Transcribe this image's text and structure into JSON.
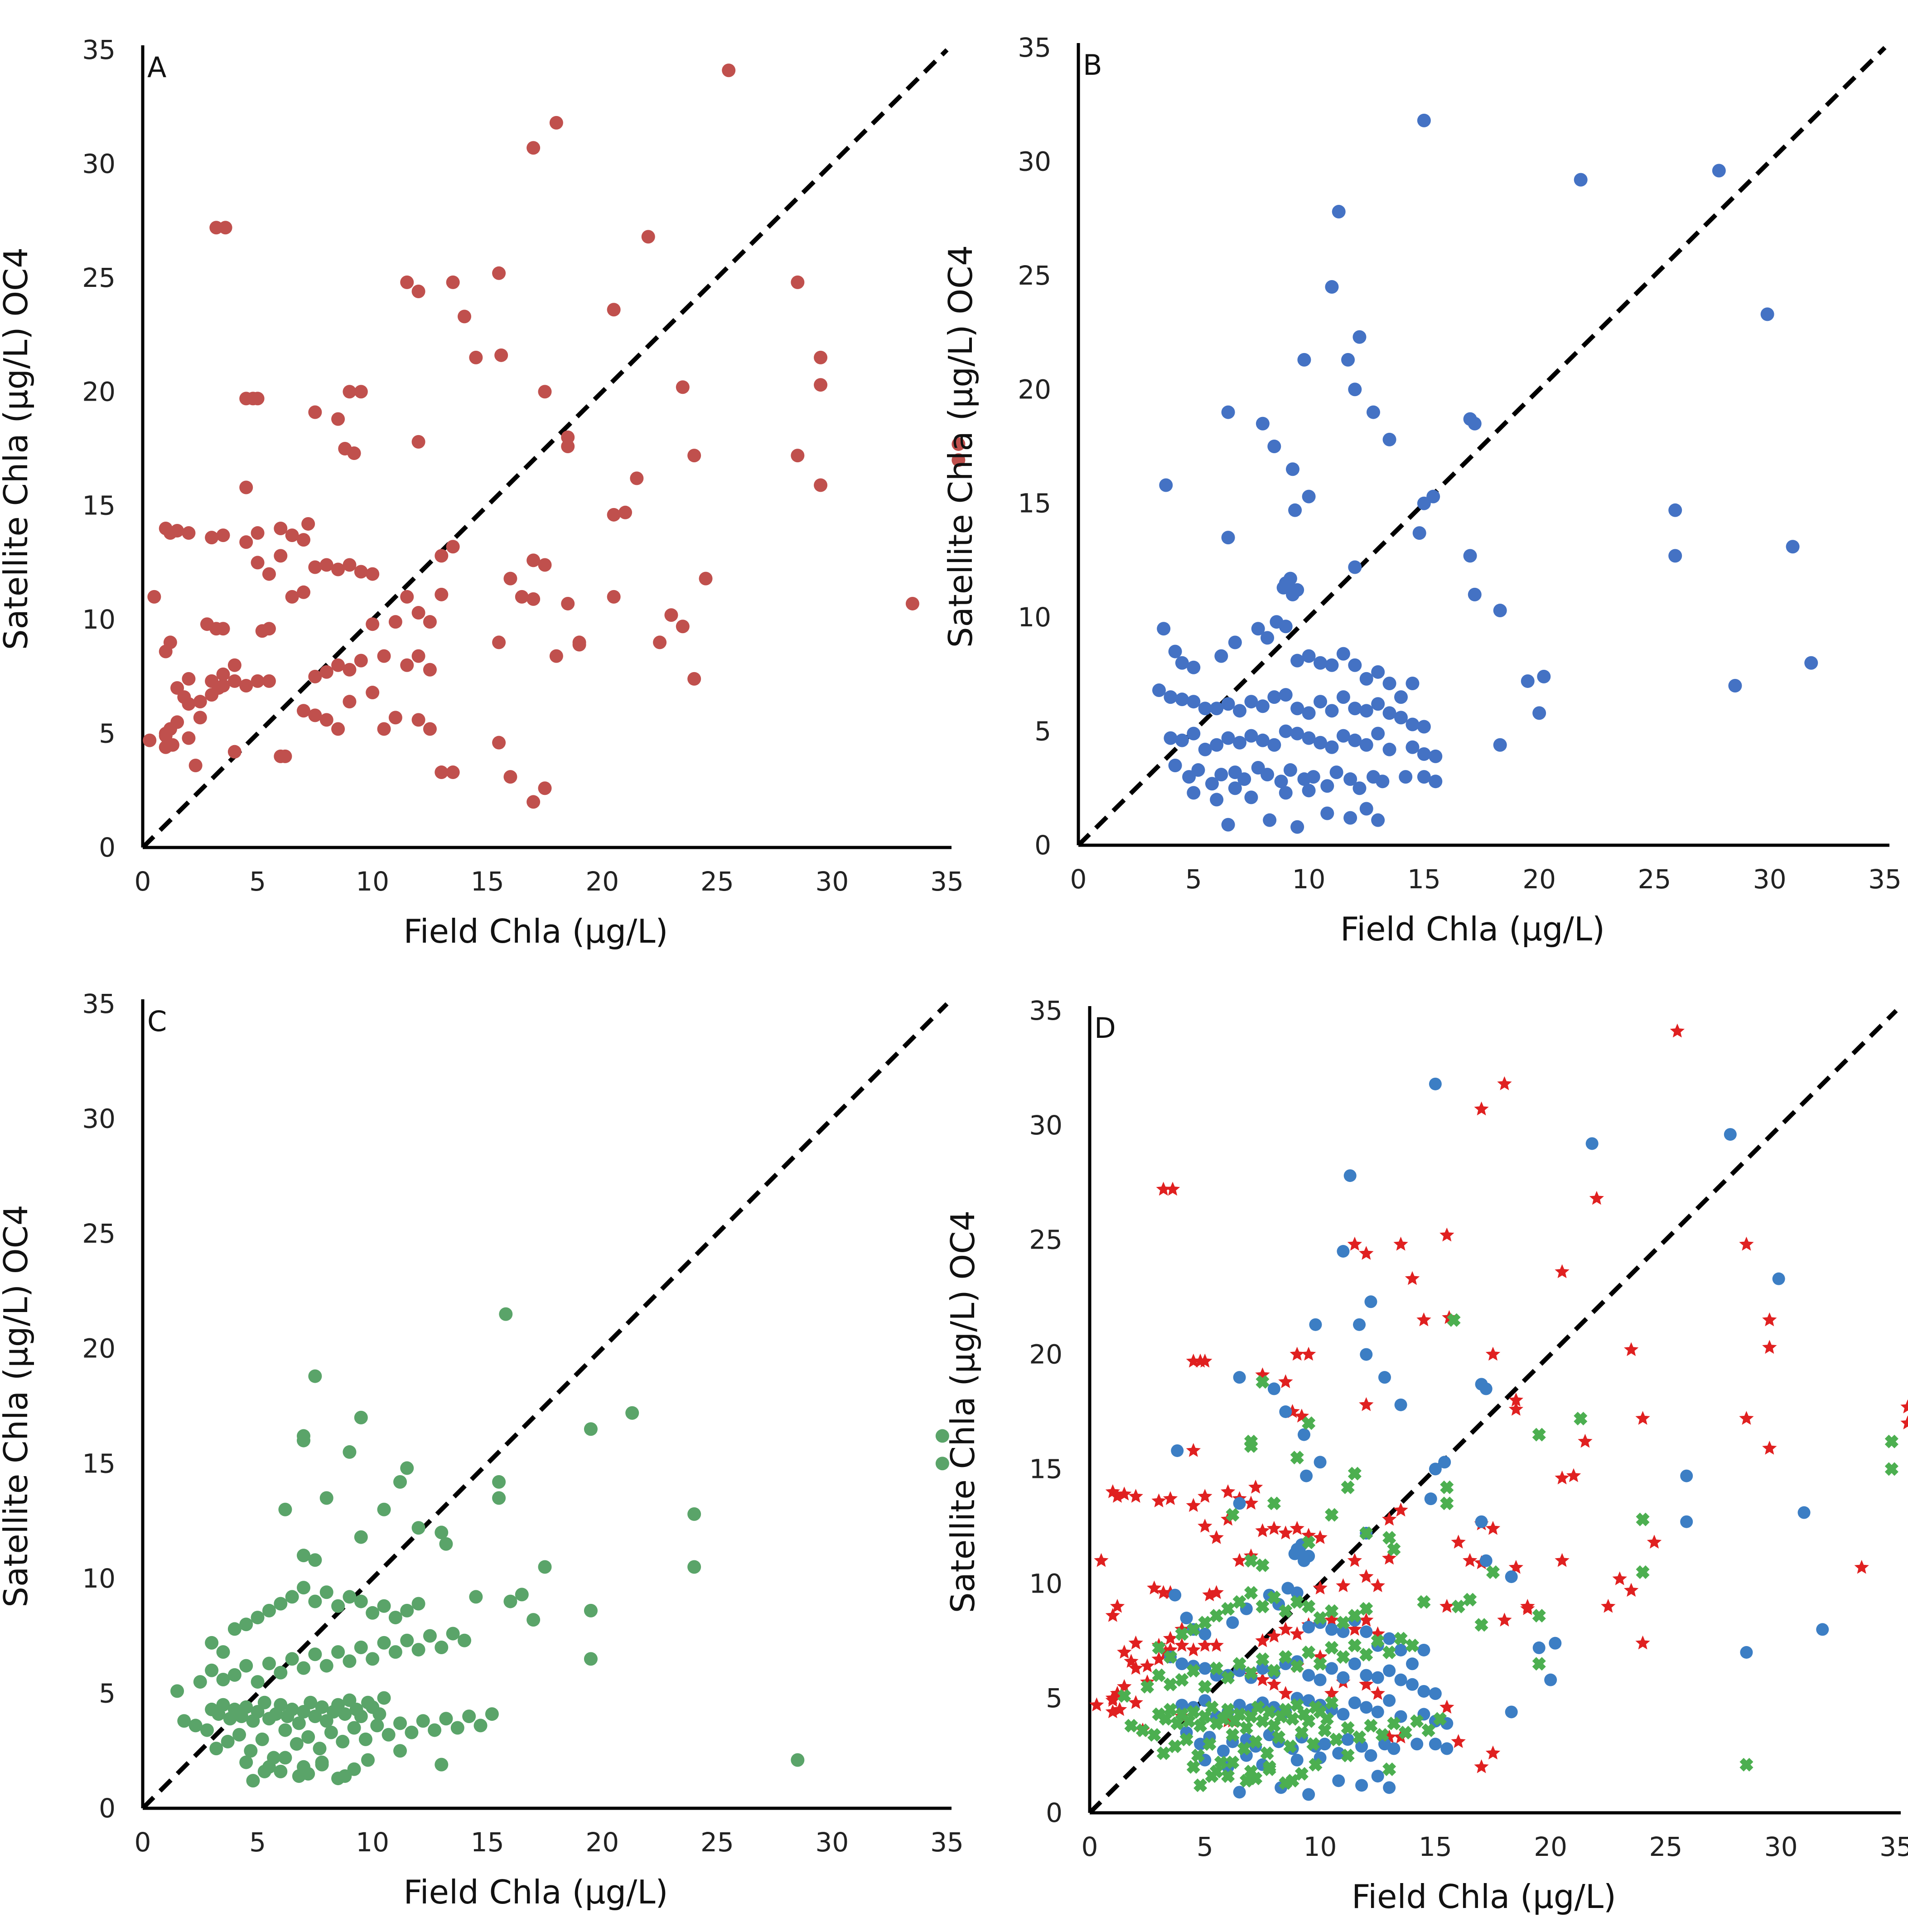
{
  "chart_data": [
    {
      "type": "scatter",
      "panel_label": "A",
      "xlabel": "Field Chla (µg/L)",
      "ylabel": "Satellite Chla (µg/L) OC4",
      "xlim": [
        0,
        35
      ],
      "ylim": [
        0,
        35
      ],
      "xticks": [
        "0",
        "5",
        "10",
        "15",
        "20",
        "25",
        "30",
        "35"
      ],
      "yticks": [
        "0",
        "5",
        "10",
        "15",
        "20",
        "25",
        "30",
        "35"
      ],
      "reference_line": "1:1 dashed",
      "series": [
        {
          "color": "#c0504d",
          "marker": "circle",
          "x": [
            0.3,
            0.5,
            1.0,
            1.0,
            1.2,
            1.3,
            1.5,
            2.0,
            2.3,
            2.5,
            1.0,
            1.2,
            1.5,
            1.8,
            2.0,
            2.5,
            3.0,
            3.3,
            3.5,
            4.0,
            2.8,
            3.2,
            3.5,
            4.0,
            1.0,
            1.2,
            1.5,
            2.0,
            3.0,
            3.5,
            4.5,
            5.0,
            5.2,
            5.5,
            6.0,
            6.5,
            7.0,
            7.2,
            7.5,
            8.0,
            8.5,
            9.0,
            9.5,
            10.0,
            10.5,
            11.0,
            11.5,
            12.0,
            12.5,
            13.0,
            4.5,
            5.0,
            5.5,
            6.0,
            6.5,
            7.0,
            7.5,
            8.0,
            8.5,
            9.0,
            9.5,
            10.0,
            11.5,
            12.0,
            12.5,
            13.0,
            13.5,
            1.0,
            1.2,
            2.0,
            3.0,
            3.5,
            4.0,
            4.5,
            5.0,
            5.5,
            6.0,
            6.2,
            7.0,
            7.5,
            8.0,
            8.5,
            9.0,
            10.0,
            10.5,
            11.0,
            12.0,
            12.5,
            13.0,
            13.5,
            15.5,
            16.0,
            17.0,
            17.5,
            18.0,
            19.0,
            3.2,
            3.6,
            4.5,
            4.8,
            5.0,
            7.5,
            8.5,
            9.0,
            9.5,
            8.8,
            9.2,
            11.5,
            12.0,
            12.0,
            13.5,
            14.0,
            14.5,
            15.5,
            15.6,
            17.0,
            17.5,
            18.0,
            18.5,
            17.0,
            18.5,
            20.5,
            22.0,
            25.5,
            20.5,
            21.0,
            21.5,
            23.5,
            24.0,
            24.5,
            23.0,
            22.5,
            28.5,
            29.5,
            28.5,
            29.5,
            29.5,
            33.5,
            35.5,
            35.5,
            16.0,
            16.5,
            15.5,
            17.5,
            19.0,
            20.5,
            23.5,
            24.0,
            17.0,
            18.5
          ],
          "y": [
            4.7,
            11.0,
            4.9,
            5.0,
            5.2,
            4.5,
            5.5,
            4.8,
            3.6,
            5.7,
            8.6,
            9.0,
            7.0,
            6.6,
            7.4,
            6.4,
            7.3,
            7.0,
            7.6,
            8.0,
            9.8,
            9.6,
            9.6,
            4.2,
            14.0,
            13.8,
            13.9,
            13.8,
            13.6,
            13.7,
            13.4,
            13.8,
            9.5,
            9.6,
            14.0,
            13.7,
            13.5,
            14.2,
            7.5,
            7.7,
            8.0,
            7.8,
            8.2,
            9.8,
            8.4,
            9.9,
            8.0,
            8.4,
            7.8,
            12.8,
            15.8,
            12.5,
            12.0,
            12.8,
            11.0,
            11.2,
            12.3,
            12.4,
            12.2,
            12.4,
            12.1,
            12.0,
            11.0,
            10.3,
            9.9,
            11.1,
            13.2,
            4.4,
            5.2,
            6.3,
            6.7,
            7.1,
            7.3,
            7.1,
            7.3,
            7.3,
            4.0,
            4.0,
            6.0,
            5.8,
            5.6,
            5.2,
            6.4,
            6.8,
            5.2,
            5.7,
            5.6,
            5.2,
            3.3,
            3.3,
            4.6,
            3.1,
            2.0,
            2.6,
            8.4,
            8.9,
            27.2,
            27.2,
            19.7,
            19.7,
            19.7,
            19.1,
            18.8,
            20.0,
            20.0,
            17.5,
            17.3,
            24.8,
            17.8,
            24.4,
            24.8,
            23.3,
            21.5,
            25.2,
            21.6,
            30.7,
            20.0,
            31.8,
            17.6,
            12.6,
            18.0,
            23.6,
            26.8,
            34.1,
            14.6,
            14.7,
            16.2,
            20.2,
            17.2,
            11.8,
            10.2,
            9.0,
            24.8,
            21.5,
            17.2,
            20.3,
            15.9,
            10.7,
            17.7,
            17.0,
            11.8,
            11.0,
            9.0,
            12.4,
            9.0,
            11.0,
            9.7,
            7.4,
            10.9,
            10.7
          ]
        }
      ]
    },
    {
      "type": "scatter",
      "panel_label": "B",
      "xlabel": "Field Chla (µg/L)",
      "ylabel": "Satellite Chla (µg/L) OC4",
      "xlim": [
        0,
        35
      ],
      "ylim": [
        0,
        35
      ],
      "xticks": [
        "0",
        "5",
        "10",
        "15",
        "20",
        "25",
        "30",
        "35"
      ],
      "yticks": [
        "0",
        "5",
        "10",
        "15",
        "20",
        "25",
        "30",
        "35"
      ],
      "reference_line": "1:1 dashed",
      "series": [
        {
          "color": "#4472c4",
          "marker": "circle",
          "x": [
            15.0,
            27.8,
            21.8,
            11.3,
            11.0,
            12.2,
            9.8,
            11.7,
            12.0,
            12.8,
            13.5,
            6.5,
            8.5,
            8.0,
            9.3,
            10.0,
            3.8,
            9.4,
            6.5,
            12.0,
            17.0,
            17.2,
            29.9,
            31.0,
            25.9,
            25.9,
            15.4,
            15.0,
            14.8,
            17.2,
            17.0,
            18.3,
            18.3,
            19.5,
            20.2,
            20.0,
            28.5,
            31.8,
            9.0,
            9.2,
            8.9,
            9.5,
            9.3,
            9.1,
            3.7,
            4.2,
            4.5,
            5.0,
            6.2,
            6.8,
            7.8,
            8.2,
            8.6,
            9.0,
            9.5,
            10.0,
            10.5,
            11.0,
            11.5,
            12.0,
            12.5,
            13.0,
            13.5,
            14.0,
            14.5,
            3.5,
            4.0,
            4.5,
            5.0,
            5.5,
            6.0,
            6.5,
            7.0,
            7.5,
            8.0,
            8.5,
            9.0,
            9.5,
            10.0,
            10.5,
            11.0,
            11.5,
            12.0,
            12.5,
            13.0,
            13.5,
            14.0,
            14.5,
            15.0,
            4.0,
            4.5,
            5.0,
            5.5,
            6.0,
            6.5,
            7.0,
            7.5,
            8.0,
            8.5,
            9.0,
            9.5,
            10.0,
            10.5,
            11.0,
            11.5,
            12.0,
            12.5,
            13.0,
            13.5,
            14.5,
            15.0,
            15.5,
            4.2,
            4.8,
            5.2,
            5.8,
            6.2,
            6.8,
            7.2,
            7.8,
            8.2,
            8.8,
            9.2,
            9.8,
            10.2,
            10.8,
            11.2,
            11.8,
            12.2,
            12.8,
            13.2,
            14.2,
            6.5,
            8.3,
            9.5,
            10.8,
            11.8,
            12.5,
            13.0,
            15.0,
            15.5,
            5.0,
            6.0,
            6.8,
            7.5,
            9.0,
            10.0
          ],
          "y": [
            31.8,
            29.6,
            29.2,
            27.8,
            24.5,
            22.3,
            21.3,
            21.3,
            20.0,
            19.0,
            17.8,
            19.0,
            17.5,
            18.5,
            16.5,
            15.3,
            15.8,
            14.7,
            13.5,
            12.2,
            18.7,
            18.5,
            23.3,
            13.1,
            14.7,
            12.7,
            15.3,
            15.0,
            13.7,
            11.0,
            12.7,
            10.3,
            4.4,
            7.2,
            7.4,
            5.8,
            7.0,
            8.0,
            11.5,
            11.7,
            11.3,
            11.2,
            11.0,
            11.4,
            9.5,
            8.5,
            8.0,
            7.8,
            8.3,
            8.9,
            9.5,
            9.1,
            9.8,
            9.6,
            8.1,
            8.3,
            8.0,
            7.9,
            8.4,
            7.9,
            7.3,
            7.6,
            7.1,
            6.5,
            7.1,
            6.8,
            6.5,
            6.4,
            6.3,
            6.0,
            6.0,
            6.2,
            5.9,
            6.3,
            6.1,
            6.5,
            6.6,
            6.0,
            5.8,
            6.3,
            5.9,
            6.5,
            6.0,
            5.9,
            6.2,
            5.8,
            5.6,
            5.3,
            5.2,
            4.7,
            4.6,
            4.9,
            4.2,
            4.4,
            4.7,
            4.5,
            4.8,
            4.6,
            4.4,
            5.0,
            4.9,
            4.7,
            4.5,
            4.3,
            4.8,
            4.6,
            4.4,
            4.9,
            4.2,
            4.3,
            4.0,
            3.9,
            3.5,
            3.0,
            3.3,
            2.7,
            3.1,
            3.2,
            2.9,
            3.4,
            3.1,
            2.8,
            3.3,
            2.9,
            3.0,
            2.6,
            3.2,
            2.9,
            2.5,
            3.0,
            2.8,
            3.0,
            0.9,
            1.1,
            0.8,
            1.4,
            1.2,
            1.6,
            1.1,
            3.0,
            2.8,
            2.3,
            2.0,
            2.5,
            2.1,
            2.3,
            2.4
          ]
        }
      ]
    },
    {
      "type": "scatter",
      "panel_label": "C",
      "xlabel": "Field Chla (µg/L)",
      "ylabel": "Satellite Chla (µg/L) OC4",
      "xlim": [
        0,
        35
      ],
      "ylim": [
        0,
        35
      ],
      "xticks": [
        "0",
        "5",
        "10",
        "15",
        "20",
        "25",
        "30",
        "35"
      ],
      "yticks": [
        "0",
        "5",
        "10",
        "15",
        "20",
        "25",
        "30",
        "35"
      ],
      "reference_line": "1:1 dashed",
      "series": [
        {
          "color": "#5aa469",
          "marker": "circle",
          "x": [
            15.8,
            7.5,
            9.5,
            7.0,
            7.0,
            9.0,
            11.5,
            11.2,
            10.5,
            8.0,
            15.5,
            15.5,
            12.0,
            13.0,
            13.2,
            7.0,
            7.5,
            9.5,
            6.2,
            19.5,
            21.3,
            24.0,
            24.0,
            34.8,
            34.8,
            16.5,
            17.5,
            19.5,
            14.5,
            16.0,
            17.0,
            19.5,
            28.5,
            1.5,
            1.8,
            2.3,
            2.8,
            3.0,
            3.3,
            3.5,
            3.8,
            4.0,
            4.3,
            4.5,
            4.8,
            5.0,
            5.3,
            5.5,
            5.8,
            6.0,
            6.3,
            6.5,
            6.8,
            7.0,
            7.3,
            7.5,
            7.8,
            8.0,
            8.3,
            8.5,
            8.8,
            9.0,
            9.3,
            9.5,
            9.8,
            10.0,
            10.3,
            10.5,
            2.5,
            3.0,
            3.5,
            4.0,
            4.5,
            5.0,
            5.5,
            6.0,
            6.5,
            7.0,
            7.5,
            8.0,
            8.5,
            9.0,
            9.5,
            10.0,
            10.5,
            11.0,
            11.5,
            12.0,
            12.5,
            13.0,
            13.5,
            14.0,
            3.0,
            3.5,
            4.0,
            4.5,
            5.0,
            5.5,
            6.0,
            6.5,
            7.0,
            7.5,
            8.0,
            8.5,
            9.0,
            9.5,
            10.0,
            10.5,
            11.0,
            11.5,
            12.0,
            3.2,
            3.7,
            4.2,
            4.7,
            5.2,
            5.7,
            6.2,
            6.7,
            7.2,
            7.7,
            8.2,
            8.7,
            9.2,
            9.7,
            10.2,
            10.7,
            11.2,
            11.7,
            12.2,
            12.7,
            13.2,
            13.7,
            14.2,
            14.7,
            15.2,
            4.8,
            5.5,
            6.0,
            6.8,
            7.2,
            7.8,
            8.5,
            9.2,
            11.2,
            13.0,
            4.5,
            5.3,
            6.2,
            7.0,
            7.8,
            8.8,
            9.8
          ],
          "y": [
            21.5,
            18.8,
            17.0,
            16.2,
            16.0,
            15.5,
            14.8,
            14.2,
            13.0,
            13.5,
            14.2,
            13.5,
            12.2,
            12.0,
            11.5,
            11.0,
            10.8,
            11.8,
            13.0,
            16.5,
            17.2,
            12.8,
            10.5,
            16.2,
            15.0,
            9.3,
            10.5,
            8.6,
            9.2,
            9.0,
            8.2,
            6.5,
            2.1,
            5.1,
            3.8,
            3.6,
            3.4,
            4.3,
            4.1,
            4.5,
            3.9,
            4.3,
            4.0,
            4.4,
            3.8,
            4.2,
            4.6,
            3.9,
            4.1,
            4.5,
            4.0,
            4.3,
            3.7,
            4.2,
            4.6,
            4.0,
            4.4,
            3.8,
            4.2,
            4.5,
            4.1,
            4.7,
            4.3,
            4.0,
            4.6,
            4.4,
            4.1,
            4.8,
            5.5,
            6.0,
            5.6,
            5.8,
            6.2,
            5.5,
            6.3,
            5.9,
            6.5,
            6.1,
            6.7,
            6.2,
            6.8,
            6.4,
            7.0,
            6.5,
            7.2,
            6.8,
            7.3,
            6.9,
            7.5,
            7.0,
            7.6,
            7.3,
            7.2,
            6.8,
            7.8,
            8.0,
            8.3,
            8.6,
            8.9,
            9.2,
            9.6,
            9.0,
            9.4,
            8.8,
            9.2,
            9.0,
            8.5,
            8.8,
            8.3,
            8.6,
            8.9,
            2.6,
            2.9,
            3.2,
            2.5,
            3.0,
            2.2,
            3.4,
            2.8,
            3.1,
            2.6,
            3.3,
            2.9,
            3.5,
            3.0,
            3.6,
            3.2,
            3.7,
            3.3,
            3.8,
            3.4,
            3.9,
            3.5,
            4.0,
            3.6,
            4.1,
            1.2,
            1.8,
            1.6,
            1.4,
            1.5,
            1.9,
            1.3,
            1.7,
            2.5,
            1.9,
            2.0,
            1.6,
            2.2,
            1.8,
            2.0,
            1.4,
            2.1
          ]
        }
      ]
    },
    {
      "type": "scatter",
      "panel_label": "D",
      "xlabel": "Field Chla (µg/L)",
      "ylabel": "Satellite Chla (µg/L) OC4",
      "xlim": [
        0,
        35
      ],
      "ylim": [
        0,
        35
      ],
      "xticks": [
        "0",
        "5",
        "10",
        "15",
        "20",
        "25",
        "30",
        "35"
      ],
      "yticks": [
        "0",
        "5",
        "10",
        "15",
        "20",
        "25",
        "30",
        "35"
      ],
      "reference_line": "1:1 dashed",
      "series": [
        {
          "color": "#e02020",
          "marker": "star",
          "source_panel": 0
        },
        {
          "color": "#3c7ec4",
          "marker": "circle",
          "source_panel": 1
        },
        {
          "color": "#4caf50",
          "marker": "cross",
          "source_panel": 2
        }
      ]
    }
  ]
}
